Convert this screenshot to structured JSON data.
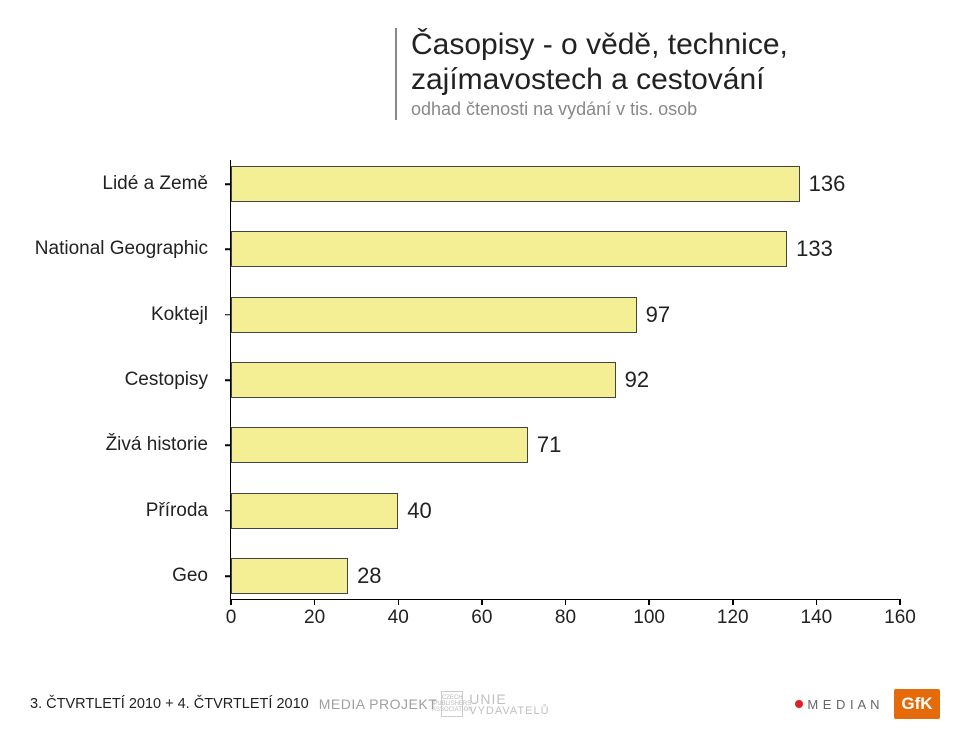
{
  "title": {
    "line1": "Časopisy - o vědě, technice,",
    "line2": "zajímavostech a cestování",
    "subtitle": "odhad čtenosti na vydání v tis. osob"
  },
  "chart": {
    "type": "bar-horizontal",
    "xlim": [
      0,
      160
    ],
    "xtick_step": 20,
    "xticks": [
      0,
      20,
      40,
      60,
      80,
      100,
      120,
      140,
      160
    ],
    "categories": [
      "Lidé a Země",
      "National Geographic",
      "Koktejl",
      "Cestopisy",
      "Živá historie",
      "Příroda",
      "Geo"
    ],
    "values": [
      136,
      133,
      97,
      92,
      71,
      40,
      28
    ],
    "bar_color": "#f4ef94",
    "bar_border": "#444444",
    "axis_color": "#000000",
    "text_color": "#222222",
    "label_fontsize": 19,
    "value_fontsize": 22,
    "background_color": "#ffffff"
  },
  "footer": {
    "period": "3. ČTVRTLETÍ 2010 + 4. ČTVRTLETÍ 2010",
    "media_projekt": "MEDIA PROJEKT",
    "cpa": "CZECH PUBLISHERS ASSOCIATION",
    "unie": "UNIE VYDAVATELŮ",
    "median": "M E D I A N",
    "gfk": "GfK"
  }
}
